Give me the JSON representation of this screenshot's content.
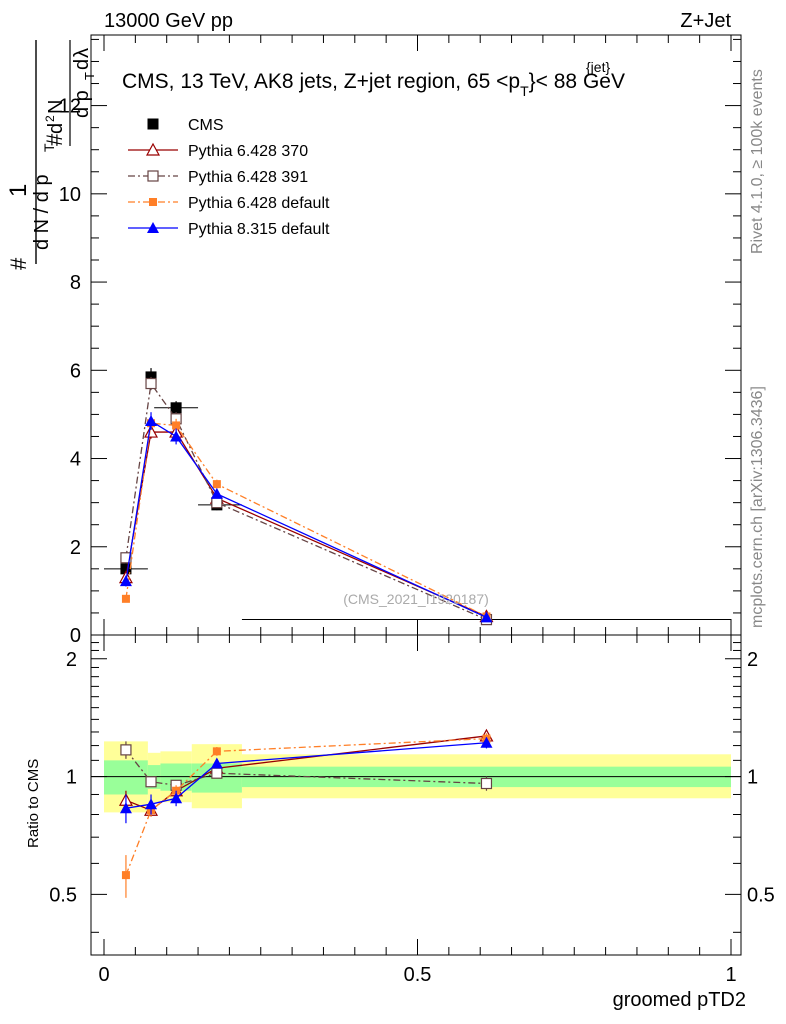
{
  "header": {
    "left_title": "13000 GeV pp",
    "right_title": "Z+Jet"
  },
  "side_labels": {
    "rivet": "Rivet 4.1.0, ≥ 100k events",
    "mcplots": "mcplots.cern.ch [arXiv:1306.3436]"
  },
  "watermark": "(CMS_2021_I1920187)",
  "chart_data": [
    {
      "type": "line",
      "panel": "main",
      "title_parts": {
        "prefix": "CMS, 13 TeV, AK8 jets, Z+jet region, 65 <p",
        "sup": "{jet}",
        "sub": "T",
        "suffix": "}< 88 GeV"
      },
      "ylabel_parts": [
        "#",
        "1",
        "d N / d p",
        "T",
        "#",
        "d",
        "2",
        "N",
        "d p",
        "T",
        "d",
        "λ"
      ],
      "xlim": [
        0,
        1
      ],
      "ylim": [
        0,
        13.6
      ],
      "yticks": [
        "0",
        "2",
        "4",
        "6",
        "8",
        "10",
        "12"
      ],
      "ytick_values": [
        0,
        2,
        4,
        6,
        8,
        10,
        12
      ],
      "x": [
        0.035,
        0.075,
        0.115,
        0.18,
        0.61
      ],
      "xerr": [
        [
          0.0,
          0.07
        ],
        [
          0.07,
          0.08
        ],
        [
          0.08,
          0.15
        ],
        [
          0.15,
          0.22
        ],
        [
          0.22,
          1.0
        ]
      ],
      "series": [
        {
          "name": "CMS",
          "values": [
            1.5,
            5.85,
            5.15,
            2.95,
            0.35
          ],
          "err": [
            0.15,
            0.2,
            0.15,
            0.12,
            0.04
          ],
          "color": "#000000",
          "marker": "square-filled",
          "line": "none"
        },
        {
          "name": "Pythia 6.428 370",
          "values": [
            1.3,
            4.6,
            4.6,
            3.1,
            0.42
          ],
          "err": [
            0.1,
            0.15,
            0.15,
            0.1,
            0.03
          ],
          "color": "#990000",
          "marker": "triangle-open",
          "line": "solid"
        },
        {
          "name": "Pythia 6.428 391",
          "values": [
            1.75,
            5.7,
            4.9,
            3.0,
            0.35
          ],
          "err": [
            0.1,
            0.15,
            0.15,
            0.1,
            0.03
          ],
          "color": "#664444",
          "marker": "square-open",
          "line": "dashdot"
        },
        {
          "name": "Pythia 6.428 default",
          "values": [
            0.82,
            4.8,
            4.75,
            3.42,
            0.42
          ],
          "err": [
            0.08,
            0.15,
            0.15,
            0.1,
            0.03
          ],
          "color": "#ff7f27",
          "marker": "square-small",
          "line": "dashdot"
        },
        {
          "name": "Pythia 8.315 default",
          "values": [
            1.22,
            4.85,
            4.5,
            3.2,
            0.4
          ],
          "err": [
            0.12,
            0.2,
            0.18,
            0.1,
            0.03
          ],
          "color": "#0000ff",
          "marker": "triangle-filled",
          "line": "solid"
        }
      ]
    },
    {
      "type": "line",
      "panel": "ratio",
      "ylabel": "Ratio to CMS",
      "xlabel": "groomed pTD2",
      "xlim": [
        0,
        1
      ],
      "ylim": [
        0.35,
        2.3
      ],
      "yscale": "log",
      "yticks": [
        "0.5",
        "1",
        "2"
      ],
      "ytick_values": [
        0.5,
        1,
        2
      ],
      "xticks": [
        "0",
        "0.5",
        "1"
      ],
      "xtick_values": [
        0,
        0.5,
        1
      ],
      "bands": [
        {
          "x0": 0.0,
          "x1": 0.07,
          "green": [
            0.9,
            1.1
          ],
          "yellow": [
            0.81,
            1.23
          ]
        },
        {
          "x0": 0.07,
          "x1": 0.09,
          "green": [
            0.93,
            1.07
          ],
          "yellow": [
            0.86,
            1.15
          ]
        },
        {
          "x0": 0.09,
          "x1": 0.14,
          "green": [
            0.92,
            1.08
          ],
          "yellow": [
            0.86,
            1.16
          ]
        },
        {
          "x0": 0.14,
          "x1": 0.22,
          "green": [
            0.91,
            1.08
          ],
          "yellow": [
            0.83,
            1.21
          ]
        },
        {
          "x0": 0.22,
          "x1": 1.0,
          "green": [
            0.94,
            1.06
          ],
          "yellow": [
            0.88,
            1.14
          ]
        }
      ],
      "series": [
        {
          "name": "Pythia 6.428 370",
          "values": [
            0.87,
            0.82,
            0.92,
            1.05,
            1.27
          ],
          "err": [
            0.05,
            0.03,
            0.03,
            0.03,
            0.04
          ],
          "color": "#990000",
          "marker": "triangle-open",
          "line": "solid"
        },
        {
          "name": "Pythia 6.428 391",
          "values": [
            1.17,
            0.97,
            0.95,
            1.02,
            0.96
          ],
          "err": [
            0.06,
            0.03,
            0.03,
            0.03,
            0.04
          ],
          "color": "#664444",
          "marker": "square-open",
          "line": "dashdot"
        },
        {
          "name": "Pythia 6.428 default",
          "values": [
            0.56,
            0.82,
            0.92,
            1.16,
            1.25
          ],
          "err": [
            0.07,
            0.03,
            0.03,
            0.03,
            0.04
          ],
          "color": "#ff7f27",
          "marker": "square-small",
          "line": "dashdot"
        },
        {
          "name": "Pythia 8.315 default",
          "values": [
            0.83,
            0.85,
            0.88,
            1.08,
            1.22
          ],
          "err": [
            0.07,
            0.05,
            0.04,
            0.03,
            0.04
          ],
          "color": "#0000ff",
          "marker": "triangle-filled",
          "line": "solid"
        }
      ]
    }
  ]
}
